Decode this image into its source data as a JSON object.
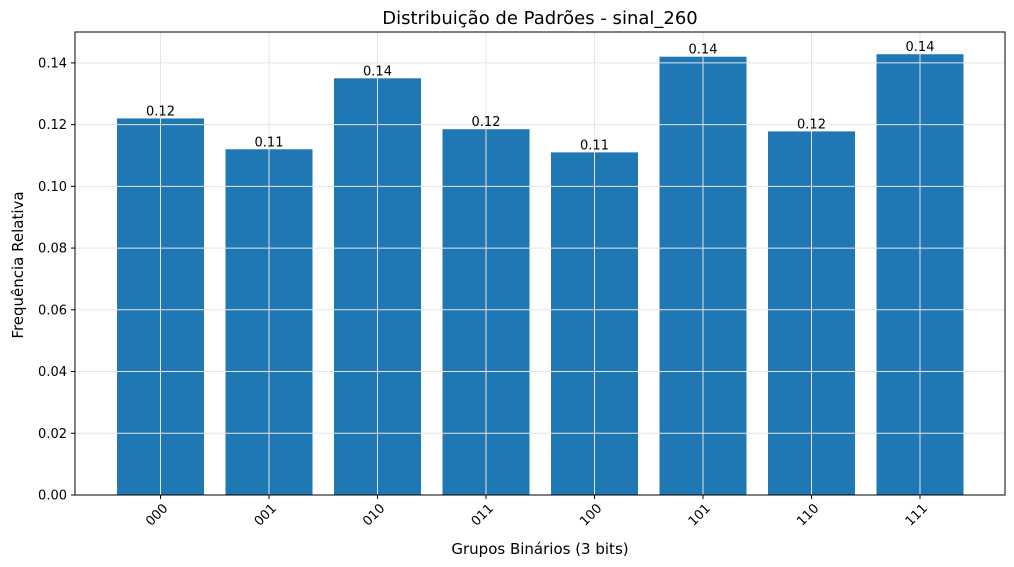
{
  "chart_data": {
    "type": "bar",
    "title": "Distribuição de Padrões - sinal_260",
    "xlabel": "Grupos Binários (3 bits)",
    "ylabel": "Frequência Relativa",
    "categories": [
      "000",
      "001",
      "010",
      "011",
      "100",
      "101",
      "110",
      "111"
    ],
    "values": [
      0.122,
      0.112,
      0.135,
      0.1185,
      0.111,
      0.142,
      0.1178,
      0.1428
    ],
    "value_labels": [
      "0.12",
      "0.11",
      "0.14",
      "0.12",
      "0.11",
      "0.14",
      "0.12",
      "0.14"
    ],
    "ylim": [
      0,
      0.15
    ],
    "yticks": [
      "0.00",
      "0.02",
      "0.04",
      "0.06",
      "0.08",
      "0.10",
      "0.12",
      "0.14"
    ],
    "grid": true,
    "bar_color": "#1f77b4",
    "grid_color": "#e5e5e5"
  }
}
